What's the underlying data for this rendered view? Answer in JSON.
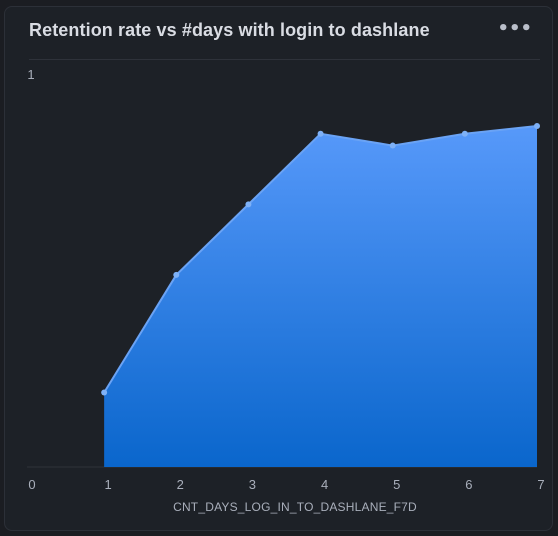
{
  "card": {
    "title": "Retention rate vs #days with login to dashlane",
    "menu_icon": "more-horizontal-icon",
    "menu_glyph": "•••"
  },
  "chart_data": {
    "type": "area",
    "title": "Retention rate vs #days with login to dashlane",
    "xlabel": "CNT_DAYS_LOG_IN_TO_DASHLANE_F7D",
    "ylabel": "",
    "x": [
      1,
      2,
      3,
      4,
      5,
      6,
      7
    ],
    "x_ticks": [
      0,
      1,
      2,
      3,
      4,
      5,
      6,
      7
    ],
    "y_ticks": [
      1
    ],
    "xlim": [
      0,
      7
    ],
    "ylim": [
      0,
      1
    ],
    "grid": false,
    "series": [
      {
        "values": [
          0.19,
          0.49,
          0.67,
          0.85,
          0.82,
          0.85,
          0.87
        ]
      }
    ],
    "colors": {
      "fill_top": "#5799fa",
      "fill_bottom": "#0a66cc",
      "line": "#6aa3f5",
      "point": "#7eb1f7"
    }
  }
}
